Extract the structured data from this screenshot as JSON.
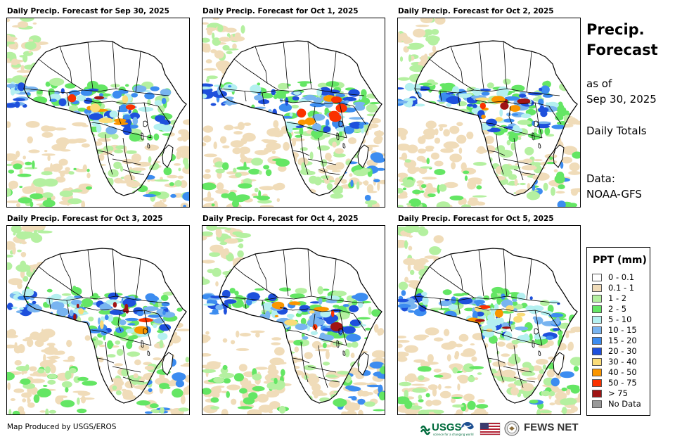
{
  "panels": [
    {
      "title": "Daily Precip. Forecast for Sep 30, 2025"
    },
    {
      "title": "Daily Precip. Forecast for Oct 1, 2025"
    },
    {
      "title": "Daily Precip. Forecast for Oct 2, 2025"
    },
    {
      "title": "Daily Precip. Forecast for Oct 3, 2025"
    },
    {
      "title": "Daily Precip. Forecast for Oct 4, 2025"
    },
    {
      "title": "Daily Precip. Forecast for Oct 5, 2025"
    }
  ],
  "side": {
    "title_line1": "Precip.",
    "title_line2": "Forecast",
    "asof_line1": "as of",
    "asof_line2": "Sep 30, 2025",
    "totals": "Daily Totals",
    "data_label": "Data:",
    "data_source": "NOAA-GFS"
  },
  "legend": {
    "title": "PPT (mm)",
    "items": [
      {
        "label": "0 - 0.1",
        "color": "#ffffff"
      },
      {
        "label": "0.1 - 1",
        "color": "#f0dcb9"
      },
      {
        "label": "1 - 2",
        "color": "#b4f0a0"
      },
      {
        "label": "2 - 5",
        "color": "#64e664"
      },
      {
        "label": "5 - 10",
        "color": "#b4f0f0"
      },
      {
        "label": "10 - 15",
        "color": "#78b4f0"
      },
      {
        "label": "15 - 20",
        "color": "#3c8cf0"
      },
      {
        "label": "20 - 30",
        "color": "#1e50dc"
      },
      {
        "label": "30 - 40",
        "color": "#fadc78"
      },
      {
        "label": "40 - 50",
        "color": "#fa9600"
      },
      {
        "label": "50 - 75",
        "color": "#fa3200"
      },
      {
        "label": "> 75",
        "color": "#a01414"
      },
      {
        "label": "No Data",
        "color": "#999999"
      }
    ]
  },
  "footer": {
    "credit": "Map Produced by USGS/EROS",
    "usgs": "USGS",
    "usgs_tagline": "science for a changing world",
    "fews": "FEWS NET"
  }
}
